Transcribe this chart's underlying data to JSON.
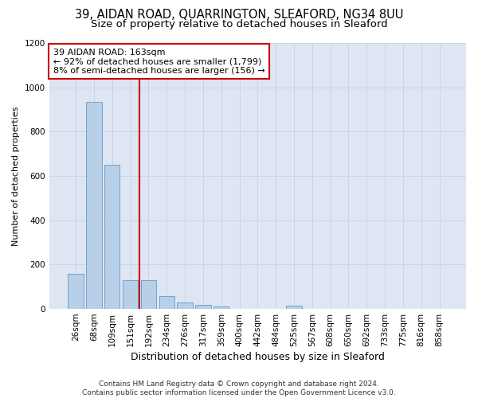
{
  "title1": "39, AIDAN ROAD, QUARRINGTON, SLEAFORD, NG34 8UU",
  "title2": "Size of property relative to detached houses in Sleaford",
  "xlabel": "Distribution of detached houses by size in Sleaford",
  "ylabel": "Number of detached properties",
  "categories": [
    "26sqm",
    "68sqm",
    "109sqm",
    "151sqm",
    "192sqm",
    "234sqm",
    "276sqm",
    "317sqm",
    "359sqm",
    "400sqm",
    "442sqm",
    "484sqm",
    "525sqm",
    "567sqm",
    "608sqm",
    "650sqm",
    "692sqm",
    "733sqm",
    "775sqm",
    "816sqm",
    "858sqm"
  ],
  "values": [
    157,
    935,
    650,
    130,
    128,
    58,
    30,
    17,
    10,
    0,
    0,
    0,
    13,
    0,
    0,
    0,
    0,
    0,
    0,
    0,
    0
  ],
  "bar_color": "#b8cfe8",
  "bar_edge_color": "#6699cc",
  "vline_color": "#cc0000",
  "vline_x": 3.5,
  "annotation_text": "39 AIDAN ROAD: 163sqm\n← 92% of detached houses are smaller (1,799)\n8% of semi-detached houses are larger (156) →",
  "annotation_box_color": "#ffffff",
  "annotation_box_edge": "#cc0000",
  "ylim": [
    0,
    1200
  ],
  "yticks": [
    0,
    200,
    400,
    600,
    800,
    1000,
    1200
  ],
  "grid_color": "#c8d4e8",
  "bg_color": "#dde6f2",
  "footer": "Contains HM Land Registry data © Crown copyright and database right 2024.\nContains public sector information licensed under the Open Government Licence v3.0.",
  "title1_fontsize": 10.5,
  "title2_fontsize": 9.5,
  "xlabel_fontsize": 9,
  "ylabel_fontsize": 8,
  "tick_fontsize": 7.5,
  "annotation_fontsize": 8,
  "footer_fontsize": 6.5
}
